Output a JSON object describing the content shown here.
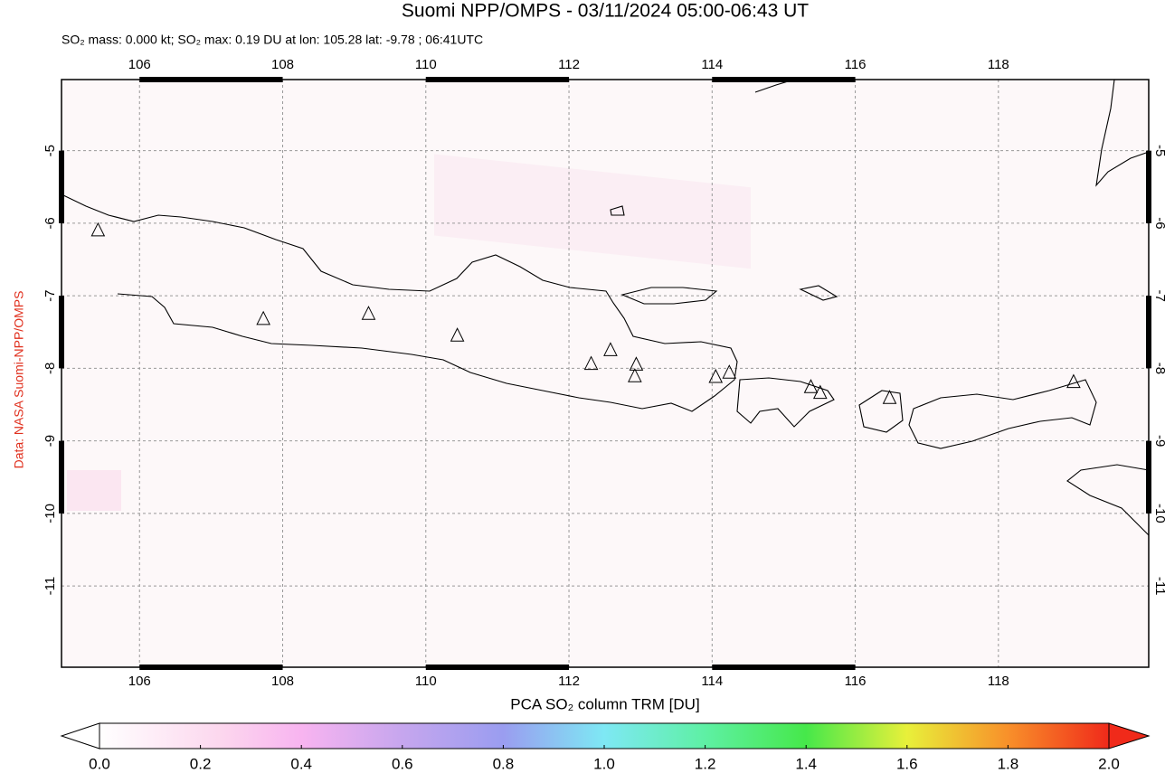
{
  "map": {
    "title": "Suomi NPP/OMPS - 03/11/2024 05:00-06:43 UT",
    "subtitle": "SO₂ mass: 0.000 kt; SO₂ max: 0.19 DU at lon: 105.28 lat: -9.78 ; 06:41UTC",
    "side_label": "Data: NASA Suomi-NPP/OMPS",
    "xlim": [
      104.91,
      120.1
    ],
    "ylim": [
      -12.12,
      -4.02
    ],
    "xticks": [
      106,
      108,
      110,
      112,
      114,
      116,
      118
    ],
    "yticks": [
      -5,
      -6,
      -7,
      -8,
      -9,
      -10,
      -11
    ],
    "grid": true,
    "volcanoes": [
      {
        "lon": 105.42,
        "lat": -6.1
      },
      {
        "lon": 107.73,
        "lat": -7.32
      },
      {
        "lon": 109.2,
        "lat": -7.25
      },
      {
        "lon": 110.44,
        "lat": -7.55
      },
      {
        "lon": 112.31,
        "lat": -7.94
      },
      {
        "lon": 112.58,
        "lat": -7.75
      },
      {
        "lon": 112.94,
        "lat": -7.95
      },
      {
        "lon": 112.92,
        "lat": -8.11
      },
      {
        "lon": 114.05,
        "lat": -8.12
      },
      {
        "lon": 114.24,
        "lat": -8.06
      },
      {
        "lon": 115.38,
        "lat": -8.26
      },
      {
        "lon": 115.51,
        "lat": -8.34
      },
      {
        "lon": 116.48,
        "lat": -8.41
      },
      {
        "lon": 119.05,
        "lat": -8.19
      }
    ]
  },
  "colorbar": {
    "label": "PCA SO₂ column TRM [DU]",
    "lim": [
      0,
      2
    ],
    "ticks": [
      {
        "value": 0,
        "label": "0.0"
      },
      {
        "value": 0.2,
        "label": "0.2"
      },
      {
        "value": 0.4,
        "label": "0.4"
      },
      {
        "value": 0.6,
        "label": "0.6"
      },
      {
        "value": 0.8,
        "label": "0.8"
      },
      {
        "value": 1,
        "label": "1.0"
      },
      {
        "value": 1.2,
        "label": "1.2"
      },
      {
        "value": 1.4,
        "label": "1.4"
      },
      {
        "value": 1.6,
        "label": "1.6"
      },
      {
        "value": 1.8,
        "label": "1.8"
      },
      {
        "value": 2,
        "label": "2.0"
      }
    ]
  }
}
